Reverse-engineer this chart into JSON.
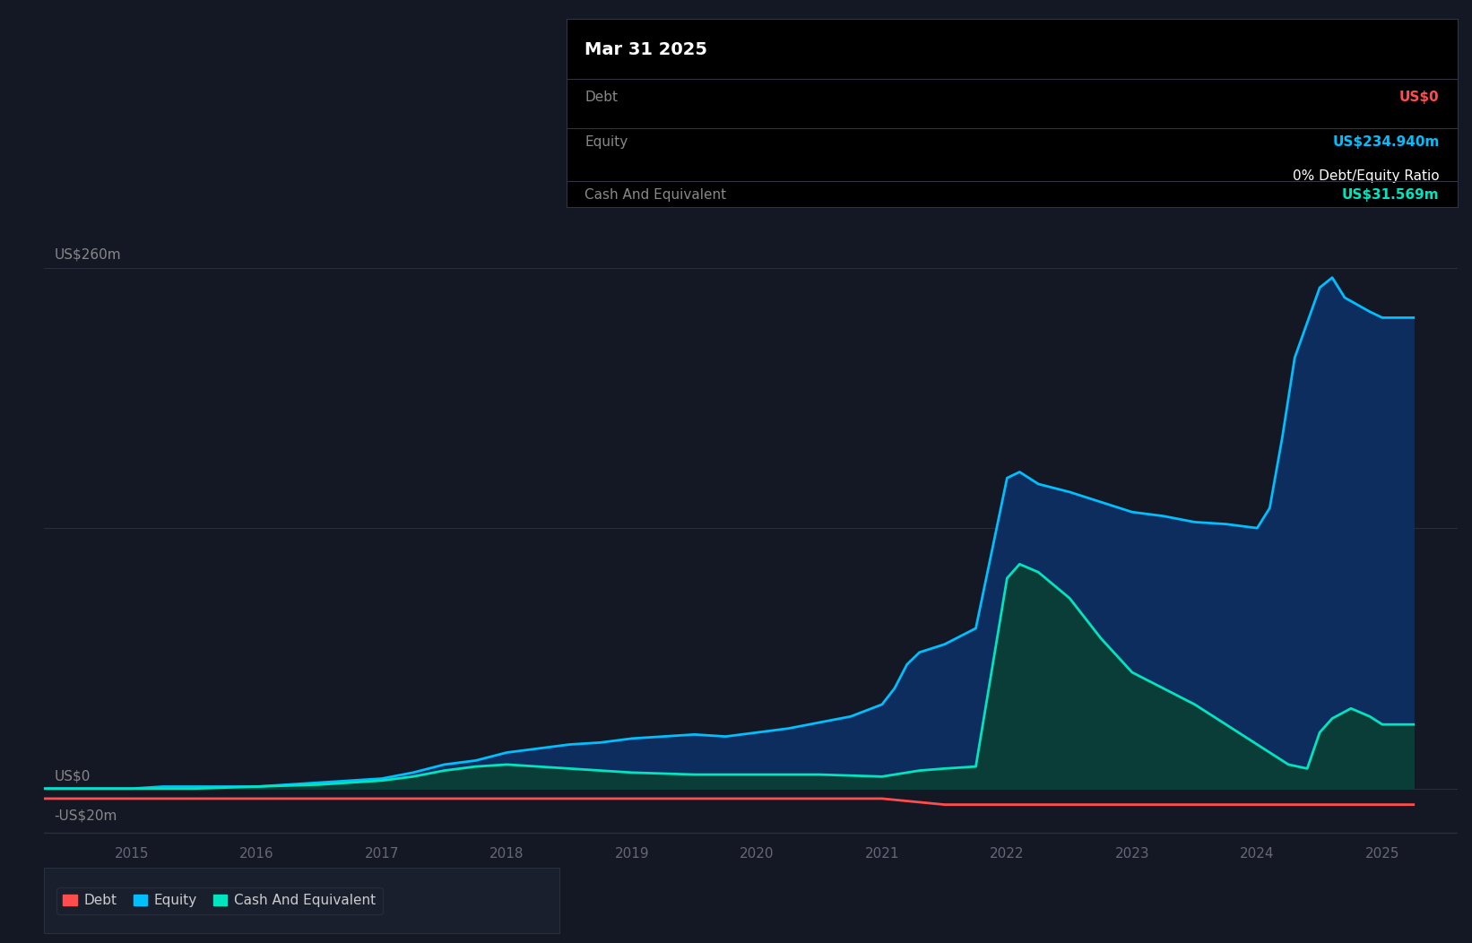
{
  "background_color": "#141824",
  "chart_bg_color": "#141824",
  "grid_color": "#2a2f3d",
  "title_box": {
    "date": "Mar 31 2025",
    "debt_label": "Debt",
    "debt_value": "US$0",
    "equity_label": "Equity",
    "equity_value": "US$234.940m",
    "ratio_text": "0% Debt/Equity Ratio",
    "cash_label": "Cash And Equivalent",
    "cash_value": "US$31.569m",
    "debt_color": "#ff4d4d",
    "equity_color": "#00bfff",
    "cash_color": "#00e5c0",
    "label_color": "#888888",
    "ratio_color": "#ffffff",
    "date_color": "#ffffff",
    "bg_color": "#000000"
  },
  "ytick_labels": [
    "US$260m",
    "US$0",
    "-US$20m"
  ],
  "ytick_values": [
    260,
    0,
    -20
  ],
  "xtick_labels": [
    "2015",
    "2016",
    "2017",
    "2018",
    "2019",
    "2020",
    "2021",
    "2022",
    "2023",
    "2024",
    "2025"
  ],
  "xtick_values": [
    2015,
    2016,
    2017,
    2018,
    2019,
    2020,
    2021,
    2022,
    2023,
    2024,
    2025
  ],
  "ylim": [
    -30,
    290
  ],
  "xlim": [
    2014.3,
    2025.6
  ],
  "debt_color": "#ff4d4d",
  "equity_color": "#00bfff",
  "cash_color": "#00e5c0",
  "equity_fill_color": "#0d2d5e",
  "cash_fill_color": "#0a3d38",
  "legend": [
    {
      "label": "Debt",
      "color": "#ff4d4d"
    },
    {
      "label": "Equity",
      "color": "#00bfff"
    },
    {
      "label": "Cash And Equivalent",
      "color": "#00e5c0"
    }
  ],
  "time_debt": [
    2014.3,
    2015.0,
    2016.0,
    2017.0,
    2018.0,
    2019.0,
    2020.0,
    2021.0,
    2021.5,
    2022.0,
    2023.0,
    2024.0,
    2025.0,
    2025.25
  ],
  "vals_debt": [
    -5,
    -5,
    -5,
    -5,
    -5,
    -5,
    -5,
    -5,
    -8,
    -8,
    -8,
    -8,
    -8,
    -8
  ],
  "time_equity": [
    2014.3,
    2015.0,
    2015.25,
    2016.0,
    2016.25,
    2017.0,
    2017.25,
    2017.5,
    2017.75,
    2018.0,
    2018.25,
    2018.5,
    2018.75,
    2019.0,
    2019.25,
    2019.5,
    2019.75,
    2020.0,
    2020.25,
    2020.5,
    2020.75,
    2021.0,
    2021.1,
    2021.2,
    2021.3,
    2021.5,
    2021.75,
    2022.0,
    2022.1,
    2022.25,
    2022.5,
    2022.75,
    2023.0,
    2023.25,
    2023.5,
    2023.75,
    2024.0,
    2024.1,
    2024.2,
    2024.3,
    2024.5,
    2024.6,
    2024.7,
    2024.9,
    2025.0,
    2025.25
  ],
  "vals_equity": [
    0,
    0,
    1,
    1,
    2,
    5,
    8,
    12,
    14,
    18,
    20,
    22,
    23,
    25,
    26,
    27,
    26,
    28,
    30,
    33,
    36,
    42,
    50,
    62,
    68,
    72,
    80,
    155,
    158,
    152,
    148,
    143,
    138,
    136,
    133,
    132,
    130,
    140,
    175,
    215,
    250,
    255,
    245,
    238,
    235,
    235
  ],
  "time_cash": [
    2014.3,
    2015.0,
    2015.5,
    2016.0,
    2016.5,
    2017.0,
    2017.25,
    2017.5,
    2017.75,
    2018.0,
    2018.25,
    2018.5,
    2018.75,
    2019.0,
    2019.5,
    2020.0,
    2020.5,
    2021.0,
    2021.1,
    2021.2,
    2021.3,
    2021.5,
    2021.75,
    2022.0,
    2022.1,
    2022.25,
    2022.5,
    2022.75,
    2023.0,
    2023.25,
    2023.5,
    2023.75,
    2024.0,
    2024.1,
    2024.25,
    2024.4,
    2024.5,
    2024.6,
    2024.75,
    2024.9,
    2025.0,
    2025.25
  ],
  "vals_cash": [
    0,
    0,
    0,
    1,
    2,
    4,
    6,
    9,
    11,
    12,
    11,
    10,
    9,
    8,
    7,
    7,
    7,
    6,
    7,
    8,
    9,
    10,
    11,
    105,
    112,
    108,
    95,
    75,
    58,
    50,
    42,
    32,
    22,
    18,
    12,
    10,
    28,
    35,
    40,
    36,
    32,
    32
  ]
}
